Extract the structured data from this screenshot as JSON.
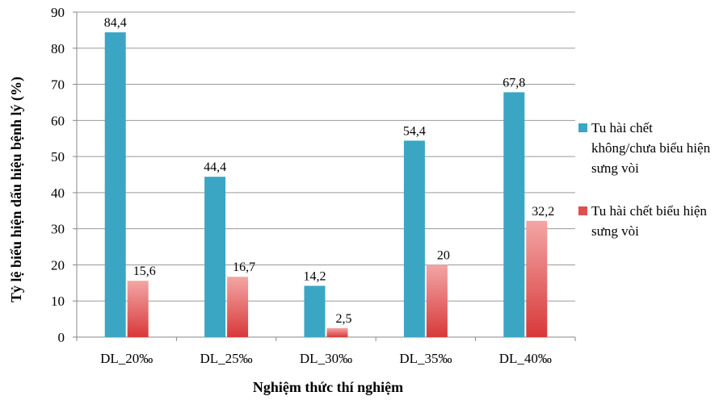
{
  "chart_data": {
    "type": "bar",
    "categories": [
      "DL_20‰",
      "DL_25‰",
      "DL_30‰",
      "DL_35‰",
      "DL_40‰"
    ],
    "series": [
      {
        "name": "Tu hài chết không/chưa biểu hiện sưng vòi",
        "color": "#3AA6C4",
        "values": [
          84.4,
          44.4,
          14.2,
          54.4,
          67.8
        ],
        "labels": [
          "84,4",
          "44,4",
          "14,2",
          "54,4",
          "67,8"
        ]
      },
      {
        "name": "Tu hài chết biểu hiện sưng vòi",
        "color": "#E0504F",
        "values": [
          15.6,
          16.7,
          2.5,
          20,
          32.2
        ],
        "labels": [
          "15,6",
          "16,7",
          "2,5",
          "20",
          "32,2"
        ]
      }
    ],
    "xlabel": "Nghiệm thức thí nghiệm",
    "ylabel": "Tỷ lệ biểu hiện dấu hiệu bệnh lý (%)",
    "ylim": [
      0,
      90
    ],
    "yticks": [
      0,
      10,
      20,
      30,
      40,
      50,
      60,
      70,
      80,
      90
    ],
    "grid": true,
    "legend_position": "right"
  },
  "legend": {
    "items": [
      {
        "label": "Tu hài chết không/chưa biểu hiện sưng vòi",
        "color": "#3AA6C4"
      },
      {
        "label": "Tu hài chết biểu hiện sưng vòi",
        "color": "#E0504F"
      }
    ]
  }
}
